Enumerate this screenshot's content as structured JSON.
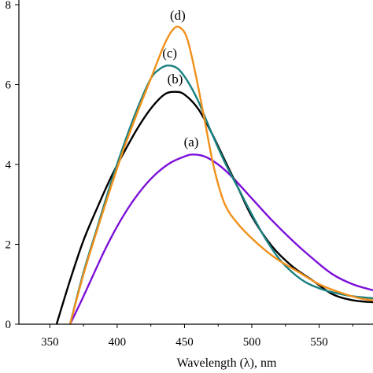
{
  "chart_data": {
    "type": "line",
    "title": "",
    "xlabel": "Wavelength (λ), nm",
    "ylabel": "",
    "xlim": [
      327,
      590
    ],
    "ylim": [
      0,
      0.8
    ],
    "x_ticks": [
      350,
      400,
      450,
      500,
      550
    ],
    "x_tick_labels": [
      "350",
      "400",
      "450",
      "500",
      "550"
    ],
    "y_ticks": [
      0,
      0.2,
      0.4,
      0.6,
      0.8
    ],
    "y_tick_labels": [
      "0",
      "2",
      "4",
      "6",
      "8"
    ],
    "grid": false,
    "legend": "none",
    "series": [
      {
        "name": "(a)",
        "color": "#7c10d8",
        "x": [
          365,
          375,
          390,
          400,
          410,
          420,
          430,
          440,
          450,
          456,
          465,
          475,
          485,
          500,
          515,
          530,
          545,
          560,
          575,
          590
        ],
        "y": [
          0.0,
          0.07,
          0.18,
          0.245,
          0.3,
          0.345,
          0.38,
          0.405,
          0.42,
          0.425,
          0.42,
          0.4,
          0.37,
          0.315,
          0.26,
          0.21,
          0.165,
          0.125,
          0.1,
          0.085
        ]
      },
      {
        "name": "(b)",
        "color": "#000000",
        "x": [
          355,
          365,
          375,
          385,
          395,
          405,
          415,
          425,
          435,
          443,
          450,
          460,
          470,
          480,
          490,
          500,
          515,
          530,
          545,
          560,
          575,
          590
        ],
        "y": [
          0.0,
          0.11,
          0.21,
          0.29,
          0.365,
          0.43,
          0.49,
          0.54,
          0.575,
          0.582,
          0.575,
          0.54,
          0.48,
          0.41,
          0.34,
          0.27,
          0.195,
          0.145,
          0.11,
          0.075,
          0.06,
          0.055
        ]
      },
      {
        "name": "(c)",
        "color": "#1a8080",
        "x": [
          365,
          375,
          385,
          395,
          405,
          415,
          425,
          432,
          438,
          445,
          452,
          460,
          470,
          480,
          490,
          500,
          510,
          520,
          530,
          540,
          550,
          560,
          575,
          590
        ],
        "y": [
          0.0,
          0.13,
          0.24,
          0.35,
          0.45,
          0.54,
          0.615,
          0.64,
          0.648,
          0.64,
          0.61,
          0.56,
          0.48,
          0.405,
          0.34,
          0.275,
          0.215,
          0.165,
          0.13,
          0.105,
          0.09,
          0.08,
          0.07,
          0.065
        ]
      },
      {
        "name": "(d)",
        "color": "#f0901a",
        "x": [
          365,
          375,
          385,
          395,
          405,
          415,
          425,
          435,
          442,
          447,
          452,
          458,
          465,
          472,
          480,
          490,
          500,
          510,
          520,
          535,
          550,
          565,
          580,
          590
        ],
        "y": [
          0.0,
          0.125,
          0.235,
          0.34,
          0.44,
          0.53,
          0.615,
          0.7,
          0.74,
          0.742,
          0.715,
          0.63,
          0.51,
          0.39,
          0.3,
          0.25,
          0.215,
          0.185,
          0.16,
          0.13,
          0.1,
          0.08,
          0.065,
          0.06
        ]
      }
    ],
    "annotations": [
      {
        "text": "(a)",
        "x": 455,
        "y": 0.445
      },
      {
        "text": "(b)",
        "x": 443,
        "y": 0.603
      },
      {
        "text": "(c)",
        "x": 439,
        "y": 0.668
      },
      {
        "text": "(d)",
        "x": 445,
        "y": 0.763
      }
    ]
  }
}
